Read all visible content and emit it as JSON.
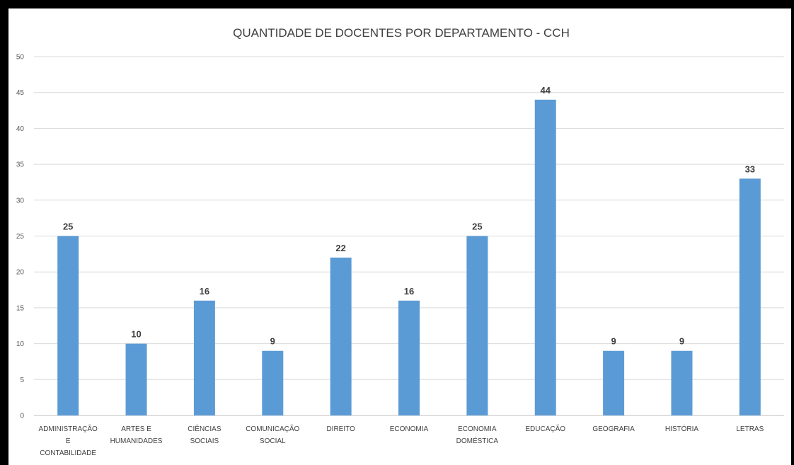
{
  "chart_data": {
    "type": "bar",
    "title": "QUANTIDADE DE DOCENTES POR DEPARTAMENTO - CCH",
    "xlabel": "",
    "ylabel": "",
    "ylim": [
      0,
      50
    ],
    "yticks": [
      0,
      5,
      10,
      15,
      20,
      25,
      30,
      35,
      40,
      45,
      50
    ],
    "grid": true,
    "legend": "none",
    "bar_color": "#5B9BD5",
    "categories": [
      [
        "ADMINISTRAÇÃO",
        "E",
        "CONTABILIDADE"
      ],
      [
        "ARTES E",
        "HUMANIDADES"
      ],
      [
        "CIÊNCIAS",
        "SOCIAIS"
      ],
      [
        "COMUNICAÇÃO",
        "SOCIAL"
      ],
      [
        "DIREITO"
      ],
      [
        "ECONOMIA"
      ],
      [
        "ECONOMIA",
        "DOMÉSTICA"
      ],
      [
        "EDUCAÇÃO"
      ],
      [
        "GEOGRAFIA"
      ],
      [
        "HISTÓRIA"
      ],
      [
        "LETRAS"
      ]
    ],
    "values": [
      25,
      10,
      16,
      9,
      22,
      16,
      25,
      44,
      9,
      9,
      33
    ]
  }
}
